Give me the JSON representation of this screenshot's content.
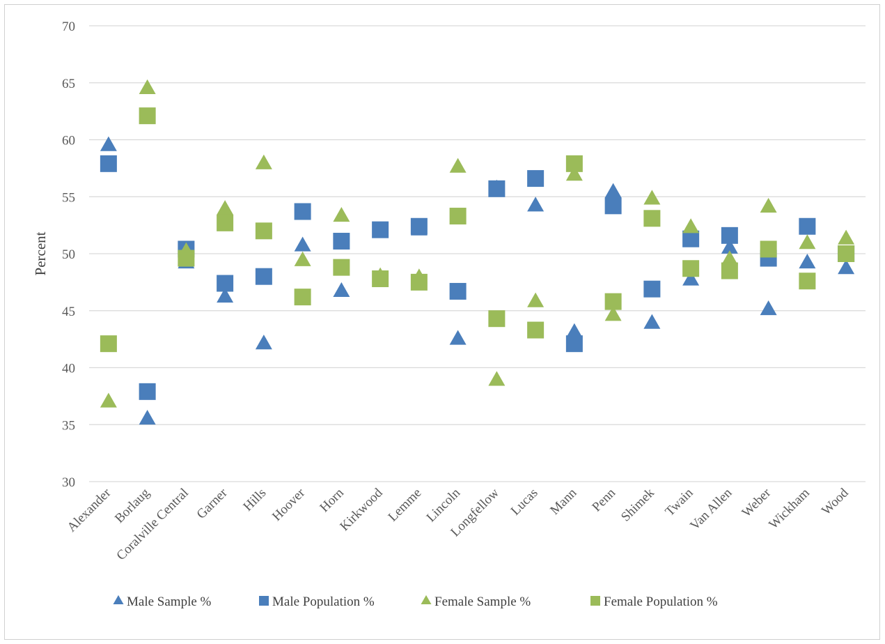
{
  "chart_data": {
    "type": "scatter",
    "title": "",
    "xlabel": "",
    "ylabel": "Percent",
    "ylim": [
      30,
      70
    ],
    "yticks": [
      30,
      35,
      40,
      45,
      50,
      55,
      60,
      65,
      70
    ],
    "grid": "horizontal",
    "legend_position": "bottom",
    "categories": [
      "Alexander",
      "Borlaug",
      "Coralville Central",
      "Garner",
      "Hills",
      "Hoover",
      "Horn",
      "Kirkwood",
      "Lemme",
      "Lincoln",
      "Longfellow",
      "Lucas",
      "Mann",
      "Penn",
      "Shimek",
      "Twain",
      "Van Allen",
      "Weber",
      "Wickham",
      "Wood"
    ],
    "series": [
      {
        "name": "Male Sample %",
        "marker": "triangle",
        "color": "#4a7ebb",
        "values": [
          59.5,
          35.5,
          49.2,
          46.2,
          42.1,
          50.7,
          46.7,
          52.0,
          52.1,
          42.5,
          55.7,
          54.2,
          43.1,
          55.4,
          43.9,
          47.7,
          50.5,
          45.1,
          49.2,
          48.7
        ]
      },
      {
        "name": "Male Population %",
        "marker": "square",
        "color": "#4a7ebb",
        "values": [
          57.9,
          37.9,
          50.4,
          47.4,
          48.0,
          53.7,
          51.1,
          52.1,
          52.4,
          46.7,
          55.7,
          56.6,
          42.1,
          54.2,
          46.9,
          51.3,
          51.6,
          49.6,
          52.4,
          50.0
        ]
      },
      {
        "name": "Female Sample %",
        "marker": "triangle",
        "color": "#9bbb59",
        "values": [
          37.0,
          64.5,
          50.2,
          53.9,
          57.9,
          49.4,
          53.3,
          48.0,
          47.9,
          57.6,
          38.9,
          45.8,
          56.9,
          44.6,
          54.8,
          52.3,
          49.5,
          54.1,
          50.9,
          51.3
        ]
      },
      {
        "name": "Female Population %",
        "marker": "square",
        "color": "#9bbb59",
        "values": [
          42.1,
          62.1,
          49.6,
          52.7,
          52.0,
          46.2,
          48.8,
          47.8,
          47.5,
          53.3,
          44.3,
          43.3,
          57.9,
          45.8,
          53.1,
          48.7,
          48.5,
          50.4,
          47.6,
          50.0
        ]
      }
    ]
  }
}
